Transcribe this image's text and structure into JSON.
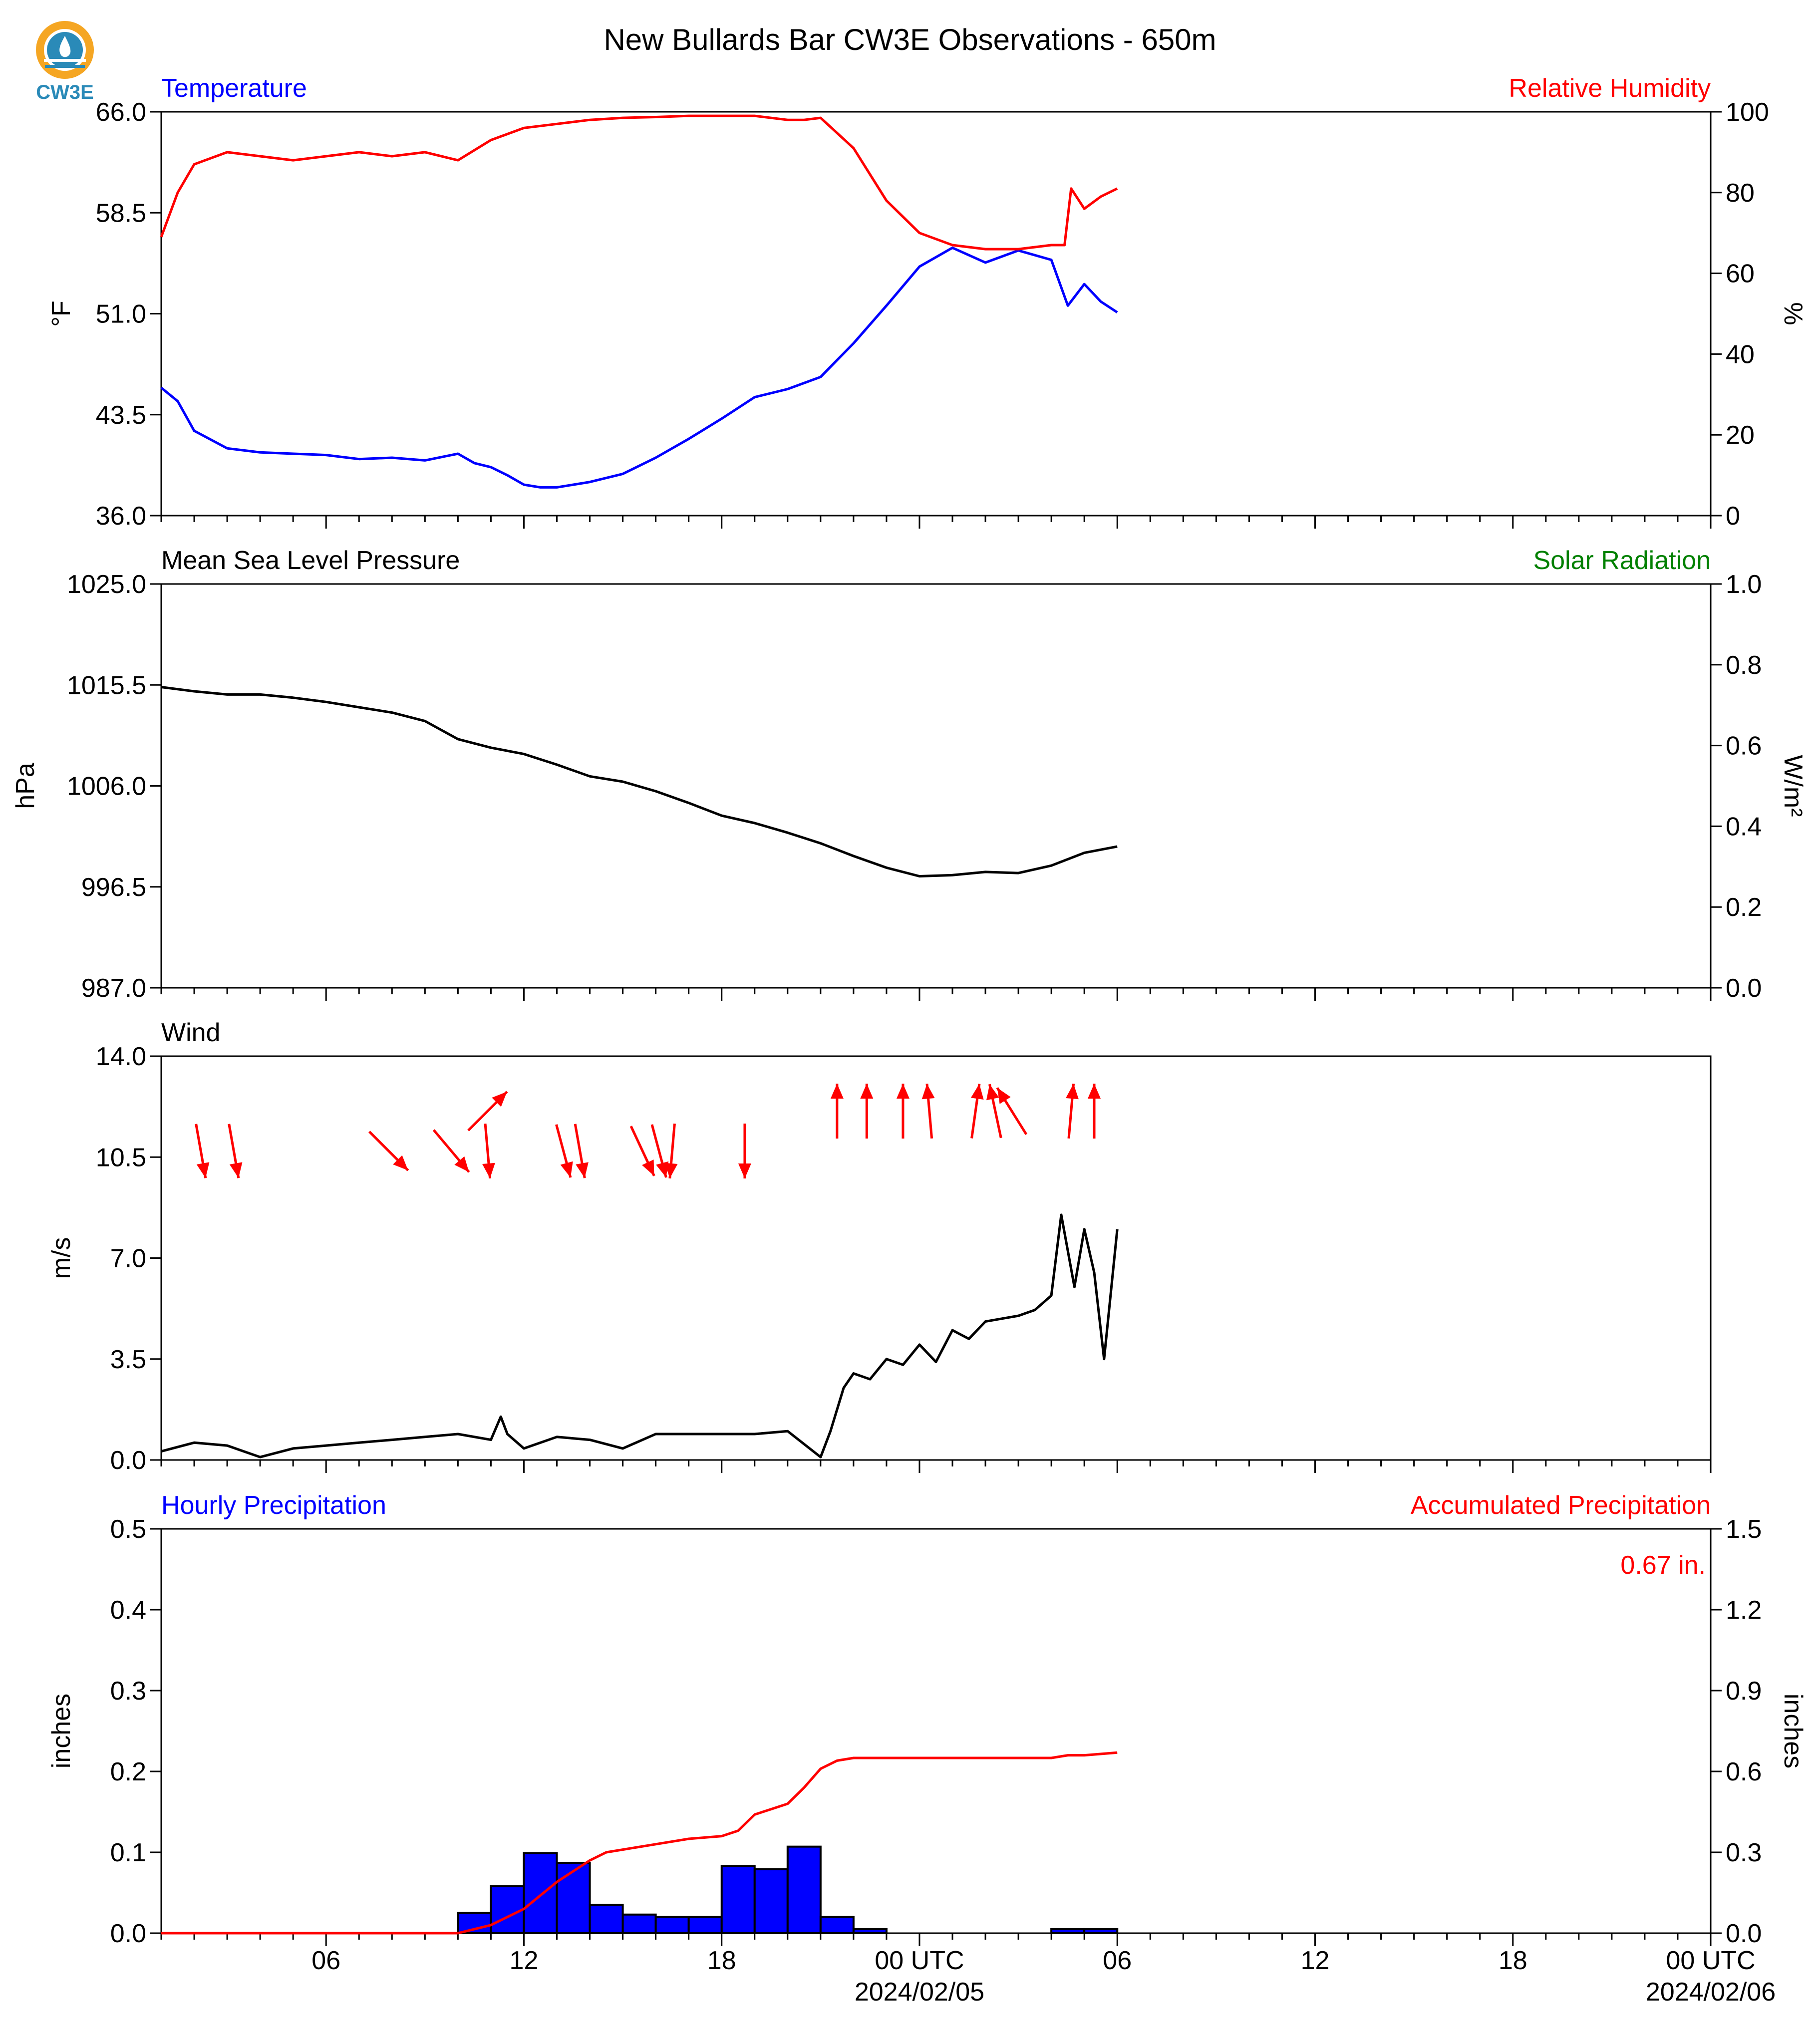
{
  "title": "New Bullards Bar CW3E Observations - 650m",
  "logo": {
    "text": "CW3E"
  },
  "colors": {
    "blue": "#0000ff",
    "red": "#ff0000",
    "green": "#008000",
    "black": "#000000",
    "logo_orange": "#f5a623",
    "logo_teal": "#2a8ab8"
  },
  "chart_data": [
    {
      "type": "line",
      "title_left": "Temperature",
      "title_right": "Relative Humidity",
      "ylabel_left": "°F",
      "ylabel_right": "%",
      "ylim_left": [
        36.0,
        66.0
      ],
      "ylim_right": [
        0,
        100
      ],
      "yticks_left": [
        "66.0",
        "58.5",
        "51.0",
        "43.5",
        "36.0"
      ],
      "yticks_right": [
        "100",
        "80",
        "60",
        "40",
        "20",
        "0"
      ],
      "series": [
        {
          "name": "Temperature",
          "axis": "left",
          "color": "#0000ff",
          "x": [
            0,
            0.5,
            1,
            2,
            3,
            4,
            5,
            6,
            7,
            8,
            9,
            9.5,
            10,
            10.5,
            11,
            11.5,
            12,
            13,
            14,
            15,
            16,
            17,
            18,
            19,
            20,
            21,
            22,
            23,
            24,
            25,
            26,
            27,
            27.5,
            28,
            28.5,
            29
          ],
          "y": [
            45.5,
            44.5,
            42.3,
            41.0,
            40.7,
            40.6,
            40.5,
            40.2,
            40.3,
            40.1,
            40.6,
            39.9,
            39.6,
            39.0,
            38.3,
            38.1,
            38.1,
            38.5,
            39.1,
            40.3,
            41.7,
            43.2,
            44.8,
            45.4,
            46.3,
            48.8,
            51.6,
            54.5,
            55.9,
            54.8,
            55.7,
            55.0,
            51.6,
            53.2,
            51.9,
            51.1
          ]
        },
        {
          "name": "Relative Humidity",
          "axis": "right",
          "color": "#ff0000",
          "x": [
            0,
            0.5,
            1,
            2,
            3,
            4,
            5,
            6,
            7,
            8,
            9,
            10,
            11,
            12,
            13,
            14,
            15,
            16,
            17,
            18,
            19,
            19.5,
            20,
            21,
            22,
            23,
            24,
            25,
            26,
            27,
            27.4,
            27.6,
            28,
            28.5,
            29
          ],
          "y": [
            69,
            80,
            87,
            90,
            89,
            88,
            89,
            90,
            89,
            90,
            88,
            93,
            96,
            97,
            98,
            98.5,
            98.7,
            99,
            99,
            99,
            98,
            98,
            98.5,
            91,
            78,
            70,
            67,
            66,
            66,
            67,
            67,
            81,
            76,
            79,
            81
          ]
        }
      ]
    },
    {
      "type": "line",
      "title_left": "Mean Sea Level Pressure",
      "title_right": "Solar Radiation",
      "ylabel_left": "hPa",
      "ylabel_right": "W/m²",
      "ylim_left": [
        987.0,
        1025.0
      ],
      "ylim_right": [
        0.0,
        1.0
      ],
      "yticks_left": [
        "1025.0",
        "1015.5",
        "1006.0",
        "996.5",
        "987.0"
      ],
      "yticks_right": [
        "1.0",
        "0.8",
        "0.6",
        "0.4",
        "0.2",
        "0.0"
      ],
      "series": [
        {
          "name": "Mean Sea Level Pressure",
          "axis": "left",
          "color": "#000000",
          "x": [
            0,
            1,
            2,
            3,
            4,
            5,
            6,
            7,
            8,
            9,
            10,
            11,
            12,
            13,
            14,
            15,
            16,
            17,
            18,
            19,
            20,
            21,
            22,
            23,
            24,
            25,
            26,
            27,
            28,
            29
          ],
          "y": [
            1015.3,
            1014.9,
            1014.6,
            1014.6,
            1014.3,
            1013.9,
            1013.4,
            1012.9,
            1012.1,
            1010.4,
            1009.6,
            1009.0,
            1008.0,
            1006.9,
            1006.4,
            1005.5,
            1004.4,
            1003.2,
            1002.5,
            1001.6,
            1000.6,
            999.4,
            998.3,
            997.5,
            997.6,
            997.9,
            997.8,
            998.5,
            999.7,
            1000.3
          ]
        }
      ]
    },
    {
      "type": "line",
      "title_left": "Wind",
      "ylabel_left": "m/s",
      "ylim_left": [
        0.0,
        14.0
      ],
      "yticks_left": [
        "14.0",
        "10.5",
        "7.0",
        "3.5",
        "0.0"
      ],
      "series": [
        {
          "name": "Wind",
          "axis": "left",
          "color": "#000000",
          "x": [
            0,
            1,
            2,
            3,
            4,
            5,
            6,
            7,
            8,
            9,
            10,
            10.3,
            10.5,
            11,
            12,
            13,
            14,
            15,
            16,
            17,
            18,
            19,
            20,
            20.3,
            20.7,
            21,
            21.5,
            22,
            22.5,
            23,
            23.5,
            24,
            24.5,
            25,
            25.5,
            26,
            26.5,
            27,
            27.3,
            27.7,
            28,
            28.3,
            28.6,
            29
          ],
          "y": [
            0.3,
            0.6,
            0.5,
            0.1,
            0.4,
            0.5,
            0.6,
            0.7,
            0.8,
            0.9,
            0.7,
            1.5,
            0.9,
            0.4,
            0.8,
            0.7,
            0.4,
            0.9,
            0.9,
            0.9,
            0.9,
            1.0,
            0.1,
            1.0,
            2.5,
            3.0,
            2.8,
            3.5,
            3.3,
            4.0,
            3.4,
            4.5,
            4.2,
            4.8,
            4.9,
            5.0,
            5.2,
            5.7,
            8.5,
            6.0,
            8.0,
            6.5,
            3.5,
            8.0
          ]
        }
      ],
      "wind_direction_arrows": [
        {
          "x": 1.2,
          "dir_deg": 350,
          "row": "low"
        },
        {
          "x": 2.2,
          "dir_deg": 350,
          "row": "low"
        },
        {
          "x": 6.9,
          "dir_deg": 315,
          "row": "low"
        },
        {
          "x": 8.8,
          "dir_deg": 320,
          "row": "low"
        },
        {
          "x": 9.9,
          "dir_deg": 225,
          "row": "high"
        },
        {
          "x": 9.9,
          "dir_deg": 355,
          "row": "low"
        },
        {
          "x": 12.2,
          "dir_deg": 345,
          "row": "low"
        },
        {
          "x": 12.7,
          "dir_deg": 350,
          "row": "low"
        },
        {
          "x": 14.6,
          "dir_deg": 335,
          "row": "low"
        },
        {
          "x": 15.1,
          "dir_deg": 345,
          "row": "low"
        },
        {
          "x": 15.5,
          "dir_deg": 5,
          "row": "low"
        },
        {
          "x": 17.7,
          "dir_deg": 0,
          "row": "low"
        },
        {
          "x": 20.5,
          "dir_deg": 180,
          "row": "high"
        },
        {
          "x": 21.4,
          "dir_deg": 180,
          "row": "high"
        },
        {
          "x": 22.5,
          "dir_deg": 180,
          "row": "high"
        },
        {
          "x": 23.3,
          "dir_deg": 175,
          "row": "high"
        },
        {
          "x": 24.7,
          "dir_deg": 188,
          "row": "high"
        },
        {
          "x": 25.3,
          "dir_deg": 168,
          "row": "high"
        },
        {
          "x": 25.8,
          "dir_deg": 148,
          "row": "high"
        },
        {
          "x": 27.6,
          "dir_deg": 185,
          "row": "high"
        },
        {
          "x": 28.3,
          "dir_deg": 180,
          "row": "high"
        }
      ]
    },
    {
      "type": "bar",
      "title_left": "Hourly Precipitation",
      "title_right": "Accumulated Precipitation",
      "annotation": "0.67 in.",
      "ylabel_left": "inches",
      "ylabel_right": "inches",
      "ylim_left": [
        0.0,
        0.5
      ],
      "ylim_right": [
        0.0,
        1.5
      ],
      "yticks_left": [
        "0.5",
        "0.4",
        "0.3",
        "0.2",
        "0.1",
        "0.0"
      ],
      "yticks_right": [
        "1.5",
        "1.2",
        "0.9",
        "0.6",
        "0.3",
        "0.0"
      ],
      "bars": {
        "name": "Hourly Precipitation",
        "color": "#0000ff",
        "x_start": [
          9,
          10,
          11,
          12,
          13,
          14,
          15,
          16,
          17,
          18,
          19,
          20,
          21,
          27,
          28
        ],
        "values": [
          0.025,
          0.058,
          0.099,
          0.087,
          0.035,
          0.023,
          0.02,
          0.02,
          0.083,
          0.079,
          0.107,
          0.02,
          0.005,
          0.005,
          0.005
        ]
      },
      "series": [
        {
          "name": "Accumulated Precipitation",
          "axis": "right",
          "color": "#ff0000",
          "x": [
            0,
            9,
            10,
            11,
            12,
            13,
            13.5,
            14,
            15,
            16,
            17,
            17.5,
            18,
            18.5,
            19,
            19.5,
            20,
            20.5,
            21,
            22,
            23,
            24,
            25,
            26,
            27,
            27.5,
            28,
            29
          ],
          "y": [
            0,
            0,
            0.03,
            0.09,
            0.19,
            0.27,
            0.3,
            0.31,
            0.33,
            0.35,
            0.36,
            0.38,
            0.44,
            0.46,
            0.48,
            0.54,
            0.61,
            0.64,
            0.65,
            0.65,
            0.65,
            0.65,
            0.65,
            0.65,
            0.65,
            0.66,
            0.66,
            0.67
          ]
        }
      ]
    }
  ],
  "x_axis": {
    "range_hours": [
      0,
      47
    ],
    "tick_labels": [
      {
        "h": 5,
        "label": "06"
      },
      {
        "h": 11,
        "label": "12"
      },
      {
        "h": 17,
        "label": "18"
      },
      {
        "h": 23,
        "label": "00 UTC",
        "sub": "2024/02/05"
      },
      {
        "h": 29,
        "label": "06"
      },
      {
        "h": 35,
        "label": "12"
      },
      {
        "h": 41,
        "label": "18"
      },
      {
        "h": 47,
        "label": "00 UTC",
        "sub": "2024/02/06"
      }
    ]
  }
}
